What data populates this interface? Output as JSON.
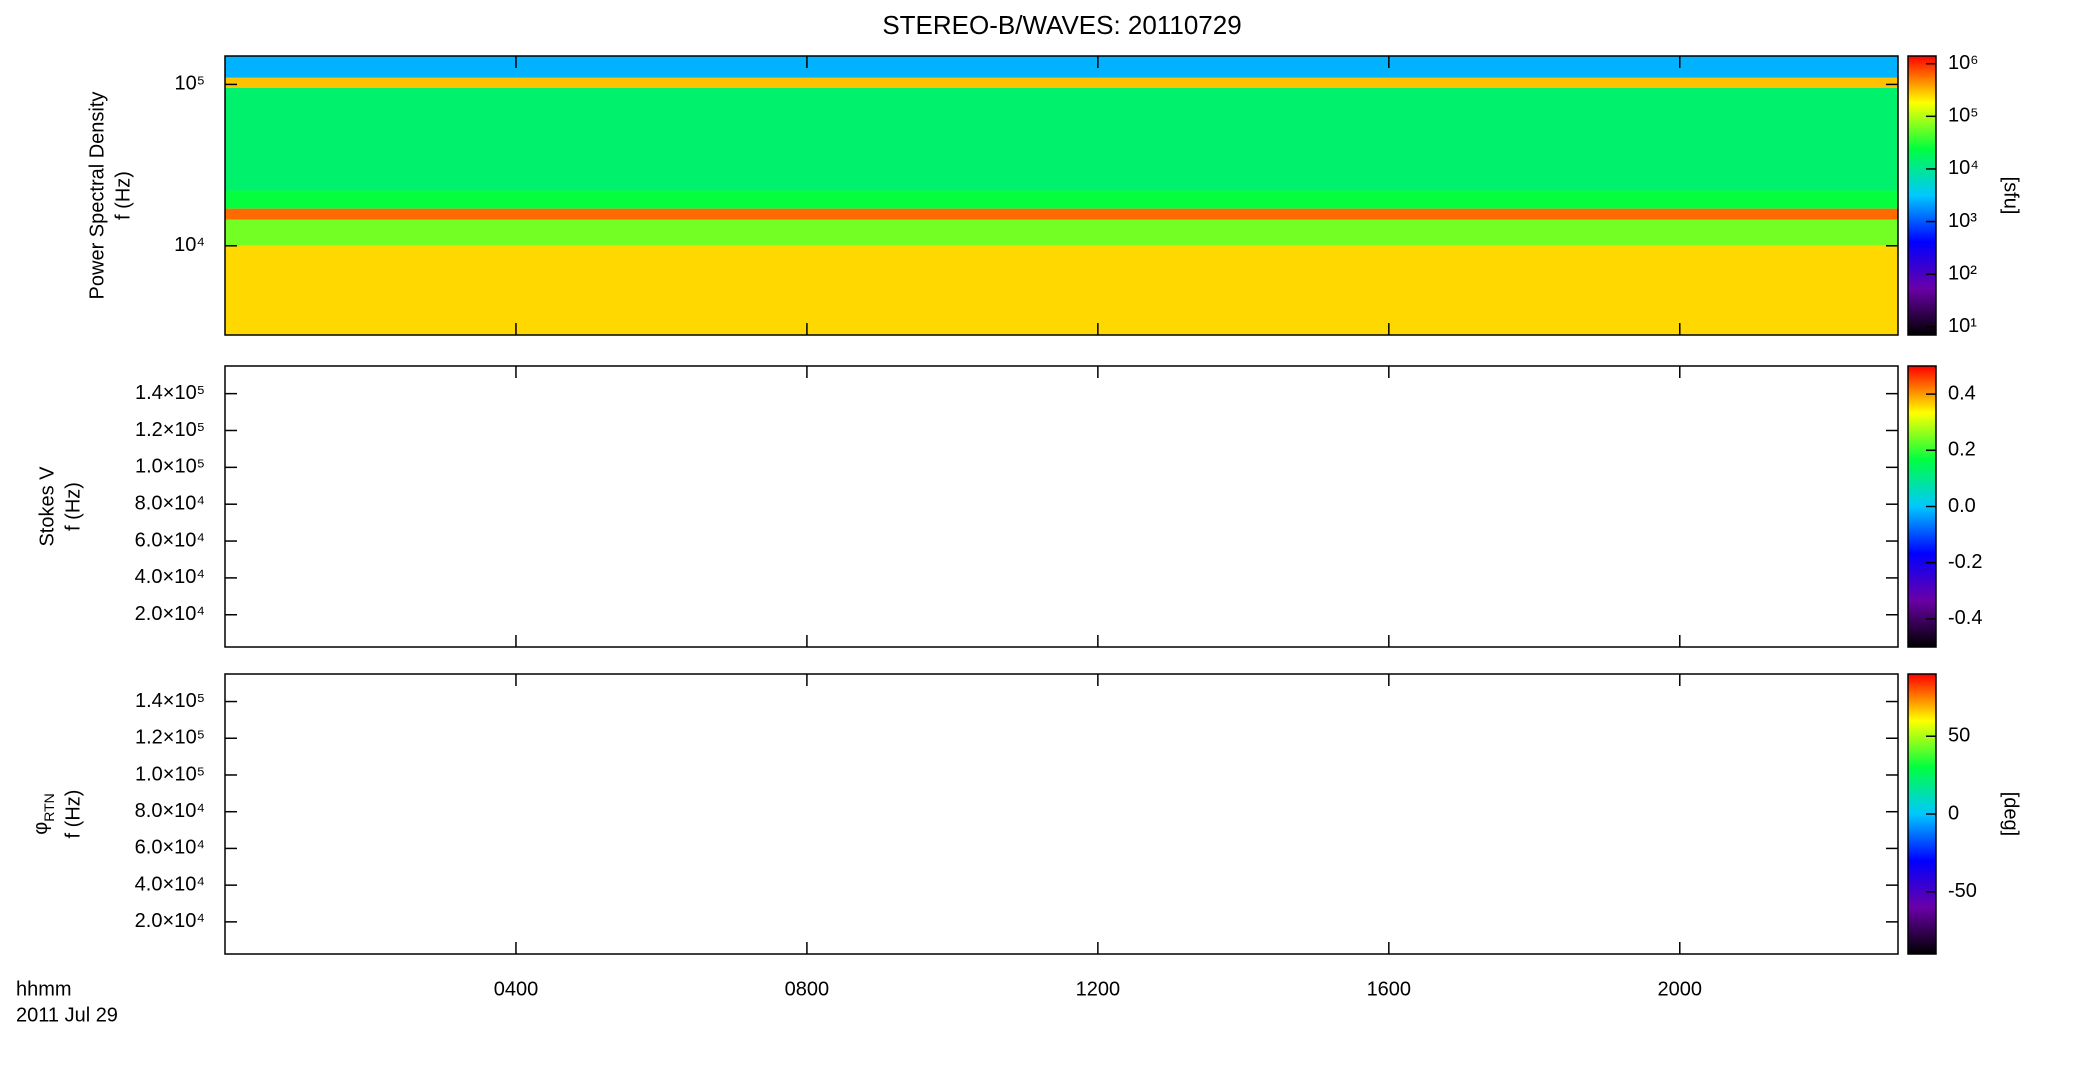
{
  "chart_data": [
    {
      "type": "spectrogram",
      "title": "STEREO-B/WAVES: 20110729",
      "ylabel": [
        "Power Spectral Density",
        "f (Hz)"
      ],
      "yscale": "log",
      "ylim": [
        2800,
        150000
      ],
      "yticks": [
        {
          "value": 10000,
          "label": "10⁴"
        },
        {
          "value": 100000,
          "label": "10⁵"
        }
      ],
      "xlim": [
        0,
        23
      ],
      "y_edges": [
        2800,
        10000,
        14500,
        17000,
        22000,
        95000,
        110000,
        150000
      ],
      "z": [
        250000,
        60000,
        600000,
        25000,
        15000,
        300000,
        2500
      ],
      "colorbar": {
        "label": "[sfu]",
        "scale": "log",
        "clim": [
          7,
          1400000
        ],
        "ticks": [
          {
            "value": 10,
            "label": "10¹"
          },
          {
            "value": 100,
            "label": "10²"
          },
          {
            "value": 1000,
            "label": "10³"
          },
          {
            "value": 10000,
            "label": "10⁴"
          },
          {
            "value": 100000,
            "label": "10⁵"
          },
          {
            "value": 1000000,
            "label": "10⁶"
          }
        ],
        "colormap": [
          "#000000",
          "#6a00a8",
          "#0000ff",
          "#00c8ff",
          "#00ff40",
          "#ffff00",
          "#ff0000"
        ]
      }
    },
    {
      "type": "spectrogram",
      "ylabel": [
        "Stokes V",
        "f (Hz)"
      ],
      "yscale": "linear",
      "ylim": [
        2500,
        155000
      ],
      "yticks": [
        {
          "value": 20000,
          "label": "2.0×10⁴"
        },
        {
          "value": 40000,
          "label": "4.0×10⁴"
        },
        {
          "value": 60000,
          "label": "6.0×10⁴"
        },
        {
          "value": 80000,
          "label": "8.0×10⁴"
        },
        {
          "value": 100000,
          "label": "1.0×10⁵"
        },
        {
          "value": 120000,
          "label": "1.2×10⁵"
        },
        {
          "value": 140000,
          "label": "1.4×10⁵"
        }
      ],
      "xlim": [
        0,
        23
      ],
      "colorbar": {
        "scale": "linear",
        "clim": [
          -0.5,
          0.5
        ],
        "ticks": [
          -0.4,
          -0.2,
          {
            "value": 0,
            "label": "0.0"
          },
          0.2,
          0.4
        ],
        "colormap": [
          "#000000",
          "#6a00a8",
          "#0000ff",
          "#00c8ff",
          "#00ff40",
          "#ffff00",
          "#ff0000"
        ]
      }
    },
    {
      "type": "spectrogram",
      "ylabel_symbol": "φ",
      "ylabel_subscript": "RTN",
      "ylabel": [
        "f (Hz)"
      ],
      "yscale": "linear",
      "ylim": [
        2500,
        155000
      ],
      "yticks": [
        {
          "value": 20000,
          "label": "2.0×10⁴"
        },
        {
          "value": 40000,
          "label": "4.0×10⁴"
        },
        {
          "value": 60000,
          "label": "6.0×10⁴"
        },
        {
          "value": 80000,
          "label": "8.0×10⁴"
        },
        {
          "value": 100000,
          "label": "1.0×10⁵"
        },
        {
          "value": 120000,
          "label": "1.2×10⁵"
        },
        {
          "value": 140000,
          "label": "1.4×10⁵"
        }
      ],
      "xlim": [
        0,
        23
      ],
      "xticks": [
        {
          "value": 4,
          "label": "0400"
        },
        {
          "value": 8,
          "label": "0800"
        },
        {
          "value": 12,
          "label": "1200"
        },
        {
          "value": 16,
          "label": "1600"
        },
        {
          "value": 20,
          "label": "2000"
        }
      ],
      "xlabel": "hhmm",
      "date_label": "2011 Jul 29",
      "colorbar": {
        "label": "[deg]",
        "scale": "linear",
        "clim": [
          -90,
          90
        ],
        "ticks": [
          -50,
          0,
          50
        ],
        "colormap": [
          "#000000",
          "#6a00a8",
          "#0000ff",
          "#00c8ff",
          "#00ff40",
          "#ffff00",
          "#ff0000"
        ]
      }
    }
  ]
}
